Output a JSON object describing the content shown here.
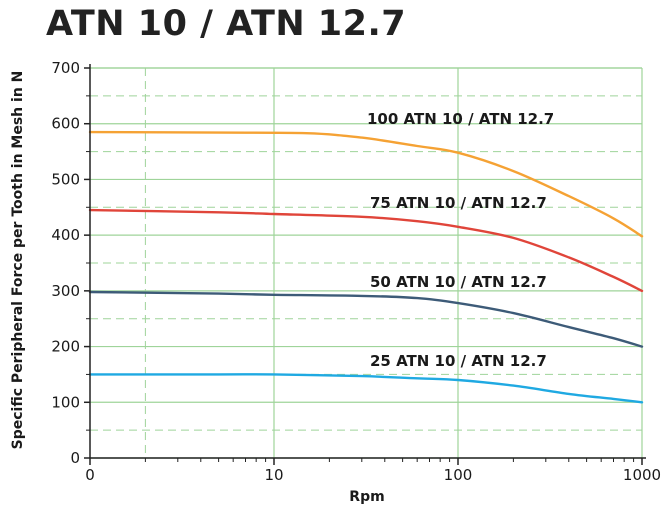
{
  "chart_data": {
    "type": "line",
    "title": "ATN 10 / ATN 12.7",
    "xlabel": "Rpm",
    "ylabel": "Specific Peripheral Force per Tooth in Mesh in N",
    "x_scale": "log",
    "xlim": [
      1,
      1000
    ],
    "ylim": [
      0,
      700
    ],
    "x_ticks": [
      {
        "value": 1,
        "label": "0"
      },
      {
        "value": 10,
        "label": "10"
      },
      {
        "value": 100,
        "label": "100"
      },
      {
        "value": 1000,
        "label": "1000"
      }
    ],
    "y_ticks": [
      0,
      100,
      200,
      300,
      400,
      500,
      600,
      700
    ],
    "grid": true,
    "series": [
      {
        "name": "100 ATN 10 / ATN 12.7",
        "color": "#f5a234",
        "x": [
          1,
          5,
          15,
          30,
          60,
          100,
          200,
          400,
          700,
          1000
        ],
        "y": [
          585,
          584,
          583,
          575,
          560,
          548,
          515,
          470,
          430,
          398
        ]
      },
      {
        "name": "75 ATN 10 / ATN 12.7",
        "color": "#e0453a",
        "x": [
          1,
          5,
          10,
          30,
          60,
          100,
          200,
          400,
          700,
          1000
        ],
        "y": [
          445,
          441,
          438,
          433,
          425,
          415,
          395,
          360,
          325,
          300
        ]
      },
      {
        "name": "50 ATN 10 / ATN 12.7",
        "color": "#3d5b78",
        "x": [
          1,
          5,
          10,
          30,
          60,
          100,
          200,
          400,
          700,
          1000
        ],
        "y": [
          298,
          295,
          293,
          291,
          287,
          278,
          260,
          235,
          215,
          200
        ]
      },
      {
        "name": "25 ATN 10 / ATN 12.7",
        "color": "#1fa9e2",
        "x": [
          1,
          5,
          10,
          30,
          60,
          100,
          200,
          400,
          700,
          1000
        ],
        "y": [
          150,
          150,
          150,
          147,
          143,
          140,
          130,
          115,
          106,
          100
        ]
      }
    ]
  },
  "style": {
    "grid_color": "#9fd49a",
    "axis_color": "#222222"
  }
}
